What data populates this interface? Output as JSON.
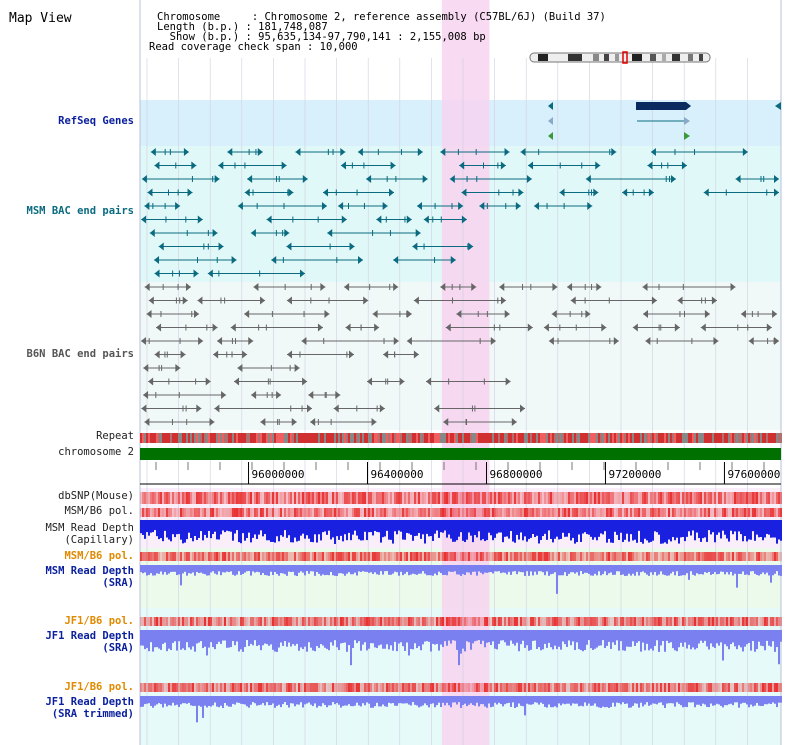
{
  "header": {
    "title": "Map View",
    "info_lines": [
      "Chromosome     : Chromosome 2, reference assembly (C57BL/6J) (Build 37)",
      "Length (b.p.) : 181,748,087",
      "  Show (b.p.) : 95,635,134-97,790,141 : 2,155,008 bp",
      "Read coverage check span : 10,000"
    ]
  },
  "labels": {
    "refseq": "RefSeq Genes",
    "msm_bac": "MSM BAC end pairs",
    "b6n_bac": "B6N BAC end pairs",
    "repeat": "Repeat",
    "chrom": "chromosome 2",
    "dbsnp": "dbSNP(Mouse)",
    "msm_b6_pol": "MSM/B6 pol.",
    "msm_depth_cap": [
      "MSM Read Depth",
      "(Capillary)"
    ],
    "msm_b6_pol_2": "MSM/B6 pol.",
    "msm_depth_sra": [
      "MSM Read Depth",
      "(SRA)"
    ],
    "jf1_b6_pol": "JF1/B6 pol.",
    "jf1_depth_sra": [
      "JF1 Read Depth",
      "(SRA)"
    ],
    "jf1_b6_pol_2": "JF1/B6 pol.",
    "jf1_depth_trim": [
      "JF1 Read Depth",
      "(SRA trimmed)"
    ]
  },
  "axis": {
    "ticks": [
      "96000000",
      "96400000",
      "96800000",
      "97200000",
      "97600000"
    ],
    "tick_values": [
      96000000,
      96400000,
      96800000,
      97200000,
      97600000
    ],
    "range": [
      95635134,
      97790141
    ]
  },
  "highlight_range": [
    96650000,
    96810000
  ],
  "colors": {
    "refseq_bg": "#d8f0fb",
    "msm_bg": "#e0f8f8",
    "b6n_bg": "#f0f8f8",
    "highlight": "#f7d3f0",
    "chromosome": "#007000",
    "refseq": "#0a2a60",
    "msm": "#0a6b80",
    "b6n": "#666666",
    "depth_cap": "#1a20e0",
    "depth_sra": "#7a80f0",
    "pol": "#e83030"
  }
}
